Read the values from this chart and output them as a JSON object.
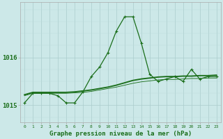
{
  "hours": [
    0,
    1,
    2,
    3,
    4,
    5,
    6,
    7,
    8,
    9,
    10,
    11,
    12,
    13,
    14,
    15,
    16,
    17,
    18,
    19,
    20,
    21,
    22,
    23
  ],
  "line1": [
    1015.05,
    1015.25,
    1015.25,
    1015.25,
    1015.2,
    1015.05,
    1015.05,
    1015.28,
    1015.6,
    1015.8,
    1016.1,
    1016.55,
    1016.85,
    1016.85,
    1016.3,
    1015.65,
    1015.5,
    1015.55,
    1015.6,
    1015.5,
    1015.75,
    1015.55,
    1015.6,
    1015.6
  ],
  "line2": [
    1015.22,
    1015.27,
    1015.27,
    1015.27,
    1015.27,
    1015.27,
    1015.28,
    1015.3,
    1015.32,
    1015.35,
    1015.38,
    1015.42,
    1015.47,
    1015.52,
    1015.55,
    1015.57,
    1015.59,
    1015.6,
    1015.6,
    1015.61,
    1015.61,
    1015.62,
    1015.62,
    1015.63
  ],
  "line3": [
    1015.2,
    1015.25,
    1015.25,
    1015.25,
    1015.25,
    1015.25,
    1015.26,
    1015.27,
    1015.29,
    1015.32,
    1015.35,
    1015.38,
    1015.42,
    1015.46,
    1015.49,
    1015.51,
    1015.53,
    1015.54,
    1015.54,
    1015.55,
    1015.56,
    1015.56,
    1015.57,
    1015.57
  ],
  "line_color": "#1a6e1a",
  "bg_color": "#cce8e8",
  "grid_color_major": "#aacccc",
  "grid_color_minor": "#bbdddd",
  "ylabel_ticks": [
    1015,
    1016
  ],
  "ylim": [
    1014.65,
    1017.15
  ],
  "xlim": [
    -0.5,
    23.5
  ],
  "xlabel": "Graphe pression niveau de la mer (hPa)",
  "marker": "+",
  "marker_size": 3.5,
  "lw": 0.9
}
